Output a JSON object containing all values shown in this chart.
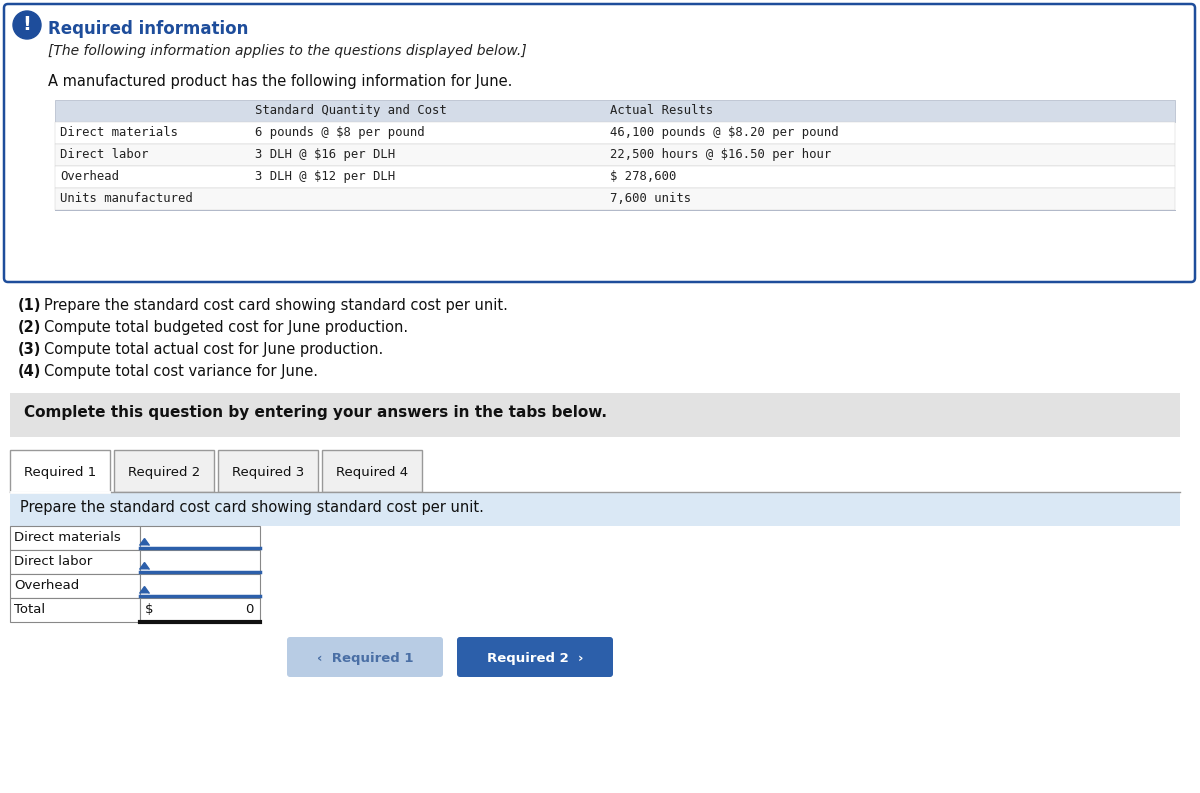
{
  "title": "Required information",
  "subtitle": "[The following information applies to the questions displayed below.]",
  "intro": "A manufactured product has the following information for June.",
  "table_header_col2": "Standard Quantity and Cost",
  "table_header_col3": "Actual Results",
  "table_rows": [
    [
      "Direct materials",
      "6 pounds @ $8 per pound",
      "46,100 pounds @ $8.20 per pound"
    ],
    [
      "Direct labor",
      "3 DLH @ $16 per DLH",
      "22,500 hours @ $16.50 per hour"
    ],
    [
      "Overhead",
      "3 DLH @ $12 per DLH",
      "$ 278,600"
    ],
    [
      "Units manufactured",
      "",
      "7,600 units"
    ]
  ],
  "questions": [
    [
      "(1)",
      "Prepare the standard cost card showing standard cost per unit."
    ],
    [
      "(2)",
      "Compute total budgeted cost for June production."
    ],
    [
      "(3)",
      "Compute total actual cost for June production."
    ],
    [
      "(4)",
      "Compute total cost variance for June."
    ]
  ],
  "complete_text": "Complete this question by entering your answers in the tabs below.",
  "tabs": [
    "Required 1",
    "Required 2",
    "Required 3",
    "Required 4"
  ],
  "active_tab": 0,
  "tab_description": "Prepare the standard cost card showing standard cost per unit.",
  "input_rows": [
    "Direct materials",
    "Direct labor",
    "Overhead",
    "Total"
  ],
  "total_label": "$",
  "total_value": "0",
  "nav_left": "‹  Required 1",
  "nav_right": "Required 2  ›",
  "bg_color": "#ffffff",
  "outer_border_color": "#1e4d9b",
  "title_color": "#1e4d9b",
  "table_header_bg": "#d4dce8",
  "complete_bg": "#e2e2e2",
  "desc_bg": "#dae8f5",
  "input_blue": "#2c5faa",
  "nav_left_bg": "#b8cce4",
  "nav_right_bg": "#2c5faa",
  "nav_text_color_left": "#4a6fa5",
  "nav_text_color_right": "#ffffff",
  "icon_color": "#ffffff",
  "icon_bg": "#1e4d9b",
  "tab_line_color": "#999999"
}
